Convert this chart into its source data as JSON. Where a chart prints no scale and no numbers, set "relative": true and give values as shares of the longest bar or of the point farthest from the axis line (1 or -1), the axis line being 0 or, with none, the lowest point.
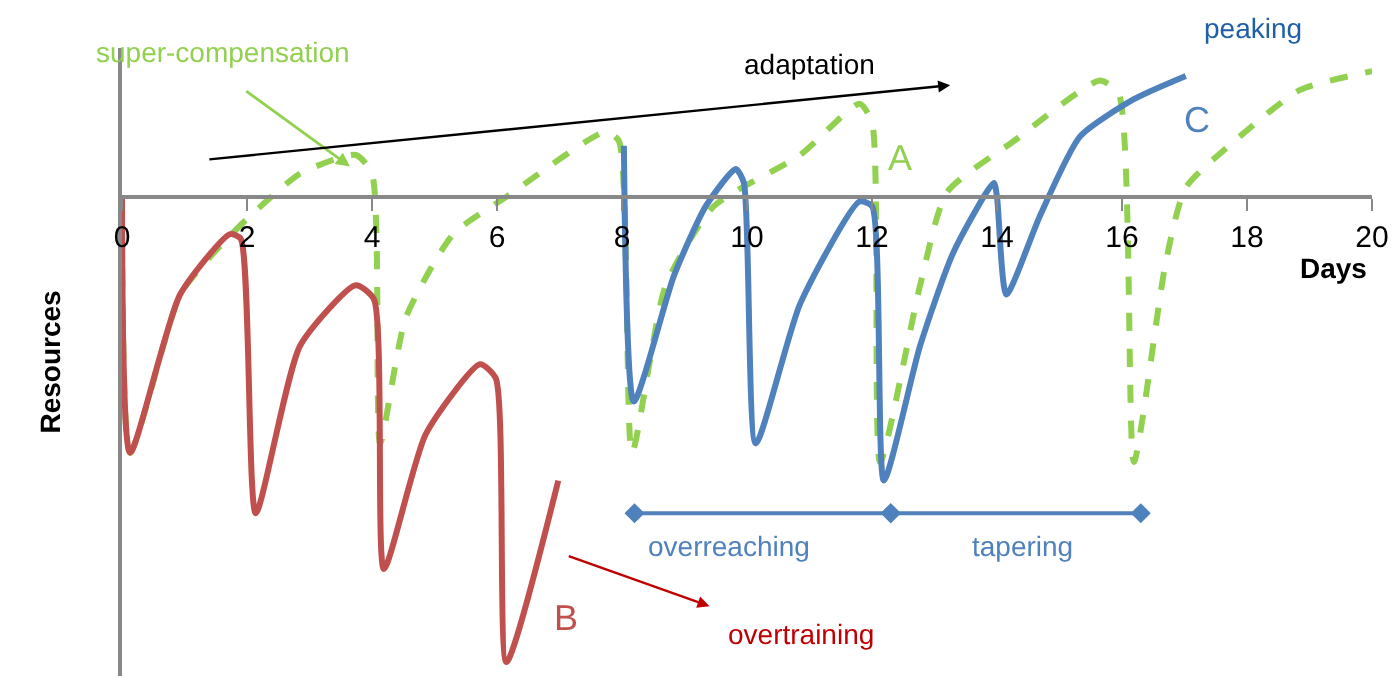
{
  "chart_data": {
    "type": "line",
    "relative": true,
    "xlabel": "Days",
    "ylabel": "Resources",
    "grid": false,
    "legend": false,
    "marker": "none",
    "xlim": [
      0,
      20
    ],
    "xticks": [
      0,
      2,
      4,
      6,
      8,
      10,
      12,
      14,
      16,
      18,
      20
    ],
    "series": [
      {
        "name": "A",
        "color": "#92d050",
        "line_style": "dashed",
        "x": [
          0,
          0.13,
          0.93,
          1.47,
          1.98,
          2.85,
          3.74,
          4.0,
          4.13,
          4.54,
          5.3,
          6.15,
          7.74,
          7.95,
          8.16,
          8.7,
          9.47,
          10.85,
          11.8,
          12.0,
          12.13,
          12.77,
          13.2,
          14.27,
          15.65,
          15.95,
          16.19,
          16.7,
          17.02,
          17.8,
          18.85,
          20.0
        ],
        "values": [
          0,
          -0.55,
          -0.21,
          -0.12,
          -0.05,
          0.05,
          0.09,
          0.05,
          -0.53,
          -0.26,
          -0.08,
          0.0,
          0.14,
          0.12,
          -0.55,
          -0.19,
          -0.02,
          0.09,
          0.2,
          0.16,
          -0.57,
          -0.19,
          0.01,
          0.12,
          0.25,
          0.22,
          -0.57,
          -0.14,
          0.02,
          0.12,
          0.23,
          0.27
        ]
      },
      {
        "name": "B",
        "color": "#c0504d",
        "line_style": "solid",
        "x": [
          0,
          0.13,
          0.93,
          1.73,
          1.9,
          2.14,
          2.85,
          3.74,
          4.03,
          4.19,
          4.86,
          5.73,
          5.98,
          6.15,
          6.98
        ],
        "values": [
          0,
          -0.55,
          -0.21,
          -0.08,
          -0.09,
          -0.68,
          -0.32,
          -0.19,
          -0.22,
          -0.8,
          -0.51,
          -0.36,
          -0.39,
          -1.0,
          -0.61
        ]
      },
      {
        "name": "C",
        "color": "#4f81bd",
        "line_style": "solid",
        "x": [
          8.03,
          8.19,
          8.83,
          9.34,
          9.82,
          9.95,
          10.14,
          10.85,
          11.8,
          12.0,
          12.19,
          12.77,
          13.3,
          13.95,
          14.0,
          14.15,
          14.69,
          15.33,
          16.19,
          17.02
        ],
        "values": [
          0.11,
          -0.44,
          -0.17,
          -0.02,
          0.06,
          0.03,
          -0.53,
          -0.23,
          -0.01,
          -0.02,
          -0.61,
          -0.32,
          -0.12,
          0.03,
          0.0,
          -0.21,
          -0.04,
          0.13,
          0.21,
          0.26
        ]
      }
    ],
    "annotations": [
      {
        "text": "super-compensation",
        "x": 3.7,
        "y": 0.06
      },
      "adaptation",
      "peaking",
      "overtraining",
      "overreaching",
      "tapering"
    ]
  }
}
